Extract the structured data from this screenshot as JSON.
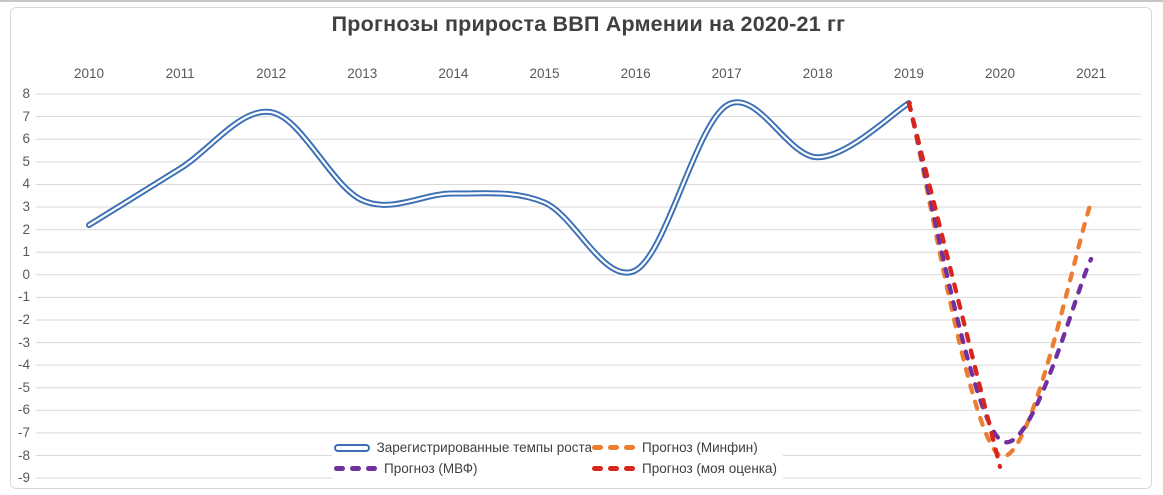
{
  "window": {
    "top_border_color": "#c6c6c6",
    "frame_border_color": "#d9d9d9"
  },
  "chart": {
    "title": "Прогнозы прироста ВВП Армении на 2020-21 гг"
  },
  "chart_data": {
    "type": "line",
    "title": "Прогнозы прироста ВВП Армении на 2020-21 гг",
    "xlabel": "",
    "ylabel": "",
    "x_tick_labels": [
      "2010",
      "2011",
      "2012",
      "2013",
      "2014",
      "2015",
      "2016",
      "2017",
      "2018",
      "2019",
      "2020",
      "2021"
    ],
    "x_tick_years": [
      2010,
      2011,
      2012,
      2013,
      2014,
      2015,
      2016,
      2017,
      2018,
      2019,
      2020,
      2021
    ],
    "y_tick_labels": [
      "8",
      "7",
      "6",
      "5",
      "4",
      "3",
      "2",
      "1",
      "0",
      "-1",
      "-2",
      "-3",
      "-4",
      "-5",
      "-6",
      "-7",
      "-8",
      "-9"
    ],
    "ylim": [
      -9,
      8
    ],
    "grid": "horizontal",
    "x_axis_position": "top",
    "legend_position": "bottom-inside",
    "series": [
      {
        "name": "Зарегистрированные темпы роста",
        "style": "solid-double",
        "color": "#3a6fb5",
        "x": [
          2010,
          2011,
          2012,
          2013,
          2014,
          2015,
          2016,
          2017,
          2018,
          2019
        ],
        "values": [
          2.2,
          4.7,
          7.2,
          3.3,
          3.6,
          3.2,
          0.2,
          7.5,
          5.2,
          7.6
        ]
      },
      {
        "name": "Прогноз (Минфин)",
        "style": "dashed",
        "color": "#ed7d31",
        "x": [
          2019,
          2020,
          2021
        ],
        "values": [
          7.6,
          -8.0,
          3.2
        ]
      },
      {
        "name": "Прогноз (МВФ)",
        "style": "dashed",
        "color": "#7030a0",
        "x": [
          2019,
          2020,
          2021
        ],
        "values": [
          7.6,
          -7.3,
          0.7
        ]
      },
      {
        "name": "Прогноз (моя оценка)",
        "style": "dashed",
        "color": "#d9261c",
        "x": [
          2019,
          2020
        ],
        "values": [
          7.6,
          -8.5
        ]
      }
    ],
    "colors": {
      "grid": "#d9d9d9",
      "tick_text": "#595959",
      "title_text": "#404040",
      "legend_text": "#404040"
    }
  }
}
